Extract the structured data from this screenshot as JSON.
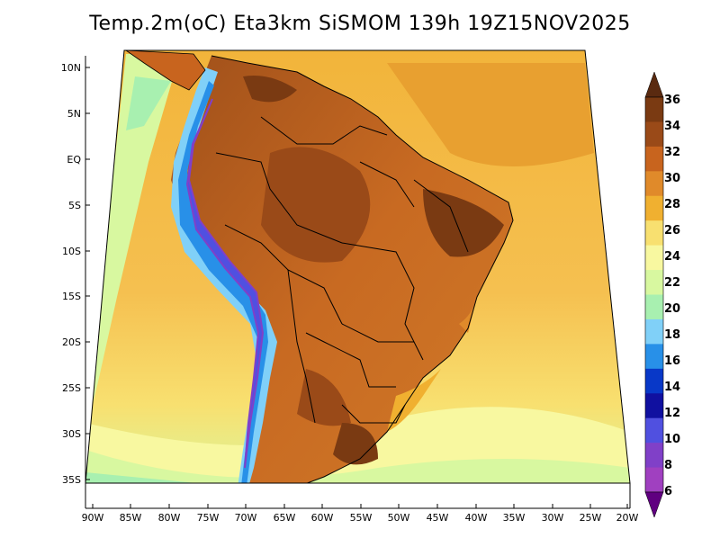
{
  "title": "Temp.2m(oC) Eta3km SiSMOM 139h 19Z15NOV2025",
  "map": {
    "lat_ticks": [
      "10N",
      "5N",
      "EQ",
      "5S",
      "10S",
      "15S",
      "20S",
      "25S",
      "30S",
      "35S"
    ],
    "lon_ticks": [
      "90W",
      "85W",
      "80W",
      "75W",
      "70W",
      "65W",
      "60W",
      "55W",
      "50W",
      "45W",
      "40W",
      "35W",
      "30W",
      "25W",
      "20W"
    ]
  },
  "colorbar": {
    "labels": [
      "36",
      "34",
      "32",
      "30",
      "28",
      "26",
      "24",
      "22",
      "20",
      "18",
      "16",
      "14",
      "12",
      "10",
      "8",
      "6"
    ],
    "colors": [
      "#5a2a10",
      "#7a3a12",
      "#9a4a18",
      "#c8641e",
      "#e08a2a",
      "#f0b030",
      "#f8e070",
      "#f8f8a0",
      "#d8f8a0",
      "#a8f0b0",
      "#80d0f8",
      "#2890e8",
      "#0838c8",
      "#1010a0",
      "#5050e0",
      "#8040c8",
      "#a040c0",
      "#600080"
    ]
  }
}
